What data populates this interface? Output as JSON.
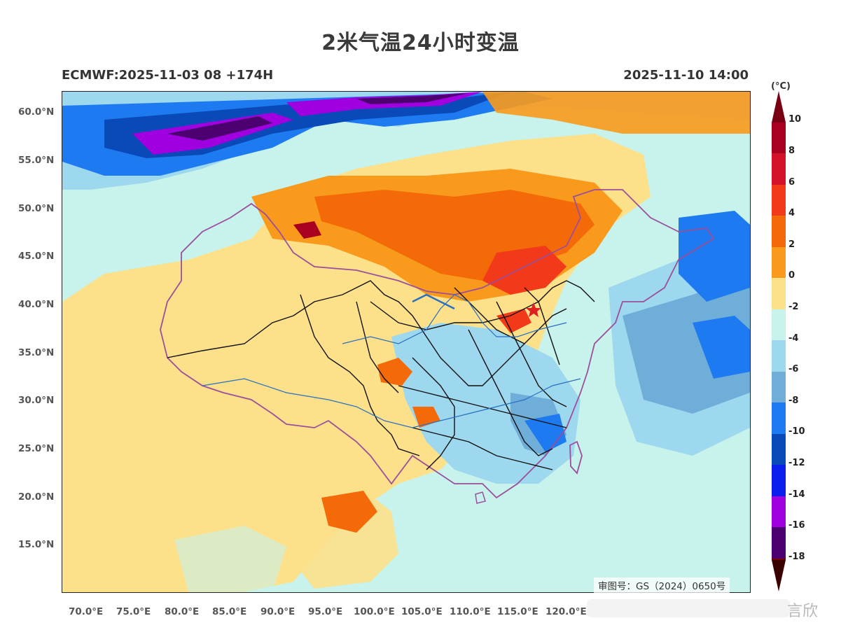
{
  "title": "2米气温24小时变温",
  "subtitle_left": "ECMWF:2025-11-03 08 +174H",
  "subtitle_right": "2025-11-10 14:00",
  "map": {
    "type": "temperature-change-map",
    "lat_labels": [
      "60.0°N",
      "55.0°N",
      "50.0°N",
      "45.0°N",
      "40.0°N",
      "35.0°N",
      "30.0°N",
      "25.0°N",
      "20.0°N",
      "15.0°N"
    ],
    "lon_labels": [
      "70.0°E",
      "75.0°E",
      "80.0°E",
      "85.0°E",
      "90.0°E",
      "95.0°E",
      "100.0°E",
      "105.0°E",
      "110.0°E",
      "115.0°E",
      "120.0°E"
    ],
    "marker": "red-star",
    "colors": {
      "ocean_base": "#c8f2ec",
      "border_province": "#111111",
      "border_country": "#9b4f9b",
      "rivers": "#2a6fc0"
    }
  },
  "colorbar": {
    "unit": "(°C)",
    "labels": [
      "10",
      "8",
      "6",
      "4",
      "2",
      "0",
      "-2",
      "-4",
      "-6",
      "-8",
      "-10",
      "-12",
      "-14",
      "-16",
      "-18"
    ],
    "colors": [
      "#a8001e",
      "#d4122a",
      "#f23a1a",
      "#f56a08",
      "#f99a1c",
      "#fde08a",
      "#c8f2ec",
      "#9ed8ee",
      "#6faed8",
      "#1e7af0",
      "#0a4ab8",
      "#0a1eef",
      "#a000e0",
      "#4c0070",
      "#7a0000"
    ]
  },
  "review_number": "审图号：GS（2024）0650号",
  "watermark": "言欣"
}
